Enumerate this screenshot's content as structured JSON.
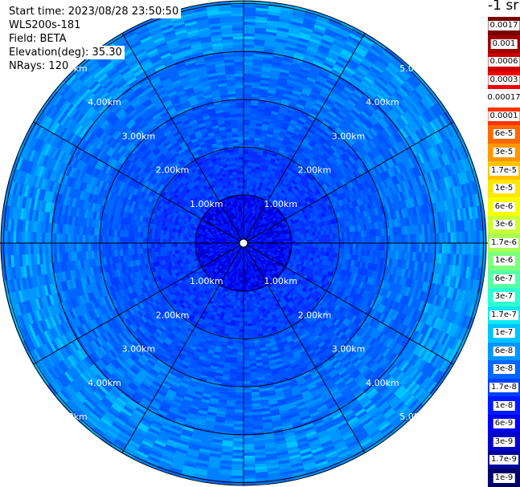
{
  "info": {
    "start_time": "Start time: 2023/08/28 23:50:50",
    "instrument": "WLS200s-181",
    "field": "Field: BETA",
    "elevation": "Elevation(deg): 35.30",
    "nrays": "NRays: 120"
  },
  "colorbar": {
    "title": "-1 sr",
    "labels": [
      "0.0017",
      "0.001",
      "0.0006",
      "0.0003",
      "0.00017",
      "0.0001",
      "6e-5",
      "3e-5",
      "1.7e-5",
      "1e-5",
      "6e-6",
      "3e-6",
      "1.7e-6",
      "1e-6",
      "6e-7",
      "3e-7",
      "1.7e-7",
      "1e-7",
      "6e-8",
      "3e-8",
      "1.7e-8",
      "1e-8",
      "6e-9",
      "3e-9",
      "1.7e-9",
      "1e-9"
    ],
    "colors": [
      "#7a0000",
      "#9e0000",
      "#cc0000",
      "#f00000",
      "#ffffff",
      "#ff3300",
      "#ff6a00",
      "#ff9800",
      "#ffc200",
      "#ffe600",
      "#f6ff00",
      "#ccff33",
      "#a8ff55",
      "#7cff7c",
      "#55ffa6",
      "#2dffcf",
      "#10e8f0",
      "#00c4ff",
      "#0096ff",
      "#0066ff",
      "#0040ff",
      "#001aff",
      "#0000ee",
      "#0000c8",
      "#00009a",
      "#000068"
    ]
  },
  "chart_data": {
    "type": "ppi-scan",
    "field": "BETA",
    "elevation_deg": 35.3,
    "n_rays": 120,
    "range_rings_km": [
      1,
      2,
      3,
      4,
      5
    ],
    "ring_labels": [
      "1.00km",
      "2.00km",
      "3.00km",
      "4.00km",
      "5.00km"
    ],
    "spoke_angles_deg": [
      0,
      30,
      60,
      90,
      120,
      150,
      180,
      210,
      240,
      270,
      300,
      330
    ],
    "dominant_values": "1e-8 to 3e-8 near center, ~1e-7 outer ring"
  }
}
